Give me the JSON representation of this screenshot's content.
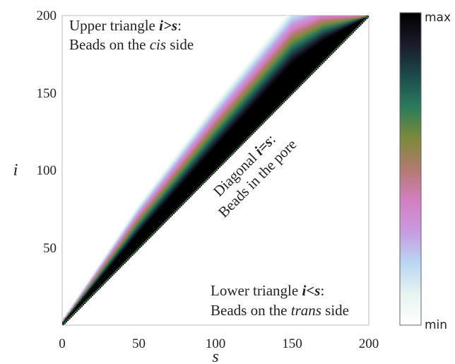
{
  "chart_data": {
    "type": "heatmap",
    "title": "",
    "xlabel": "s",
    "ylabel": "i",
    "xlim": [
      0,
      200
    ],
    "ylim": [
      0,
      200
    ],
    "x_ticks": [
      "0",
      "50",
      "100",
      "150",
      "200"
    ],
    "y_ticks": [
      "50",
      "100",
      "150",
      "200"
    ],
    "band": {
      "description_source": "diagonal i=s band with decay above diagonal",
      "lower_edge": "i = s",
      "width_in_i_at_s": [
        [
          0,
          2
        ],
        [
          50,
          18
        ],
        [
          100,
          28
        ],
        [
          150,
          35
        ],
        [
          170,
          25
        ],
        [
          200,
          0
        ]
      ]
    },
    "colorbar": {
      "max_label": "max",
      "min_label": "min"
    },
    "annotations": {
      "upper_line1_text": "Upper triangle ",
      "upper_line1_math": "i>s",
      "upper_line1_colon": ":",
      "upper_line2_text": "Beads on the ",
      "upper_line2_italic": "cis",
      "upper_line2_end": " side",
      "diag_line1_text": "Diagonal ",
      "diag_line1_math": "i=s",
      "diag_line1_colon": ":",
      "diag_line2_text": "Beads in the pore",
      "lower_line1_text": "Lower triangle ",
      "lower_line1_math": "i<s",
      "lower_line1_colon": ":",
      "lower_line2_text": "Beads on the ",
      "lower_line2_italic": "trans",
      "lower_line2_end": " side"
    },
    "colormap": [
      "#ffffff",
      "#e6f4f0",
      "#b9d6f2",
      "#c89ae0",
      "#d37fc0",
      "#b27a6f",
      "#7b8a3a",
      "#2a7a5c",
      "#1b4a4a",
      "#1a1a2a",
      "#000000"
    ]
  }
}
